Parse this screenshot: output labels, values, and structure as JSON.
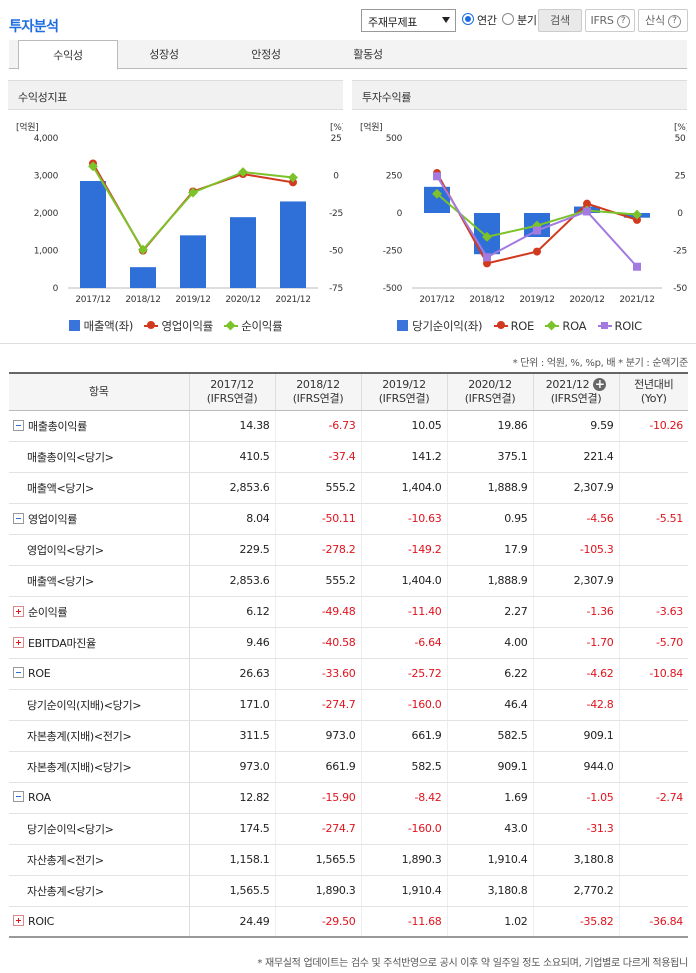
{
  "header": {
    "title": "투자분석",
    "report_select": "주재무제표",
    "period_annual": "연간",
    "period_quarter": "분기",
    "search_label": "검색",
    "ifrs_label": "IFRS",
    "formula_label": "산식",
    "help_glyph": "?"
  },
  "tabs": [
    {
      "label": "수익성",
      "active": true
    },
    {
      "label": "성장성",
      "active": false
    },
    {
      "label": "안정성",
      "active": false
    },
    {
      "label": "활동성",
      "active": false
    }
  ],
  "chart_data": [
    {
      "type": "bar",
      "title": "수익성지표",
      "left_unit": "[억원]",
      "right_unit": "[%]",
      "categories": [
        "2017/12",
        "2018/12",
        "2019/12",
        "2020/12",
        "2021/12"
      ],
      "left_ticks": [
        "4,000",
        "3,000",
        "2,000",
        "1,000",
        "0"
      ],
      "right_ticks": [
        "25",
        "0",
        "-25",
        "-50",
        "-75"
      ],
      "ylim_left": [
        0,
        4000
      ],
      "ylim_right": [
        -75,
        25
      ],
      "series": [
        {
          "name": "매출액(좌)",
          "kind": "bar",
          "axis": "left",
          "color": "#2f6fd8",
          "values": [
            2853.6,
            555.2,
            1404.0,
            1888.9,
            2307.9
          ]
        },
        {
          "name": "영업이익률",
          "kind": "line",
          "marker": "circle",
          "axis": "right",
          "color": "#d13a1e",
          "values": [
            8.04,
            -50.11,
            -10.63,
            0.95,
            -4.56
          ]
        },
        {
          "name": "순이익률",
          "kind": "line",
          "marker": "diamond",
          "axis": "right",
          "color": "#7cc22a",
          "values": [
            6.12,
            -49.48,
            -11.4,
            2.27,
            -1.36
          ]
        }
      ]
    },
    {
      "type": "bar",
      "title": "투자수익률",
      "left_unit": "[억원]",
      "right_unit": "[%]",
      "categories": [
        "2017/12",
        "2018/12",
        "2019/12",
        "2020/12",
        "2021/12"
      ],
      "left_ticks": [
        "500",
        "250",
        "0",
        "-250",
        "-500"
      ],
      "right_ticks": [
        "50",
        "25",
        "0",
        "-25",
        "-50"
      ],
      "ylim_left": [
        -500,
        500
      ],
      "ylim_right": [
        -50,
        50
      ],
      "series": [
        {
          "name": "당기순이익(좌)",
          "kind": "bar",
          "axis": "left",
          "color": "#2f6fd8",
          "values": [
            174.5,
            -274.7,
            -160.0,
            43.0,
            -31.3
          ]
        },
        {
          "name": "ROE",
          "kind": "line",
          "marker": "circle",
          "axis": "right",
          "color": "#d13a1e",
          "values": [
            26.63,
            -33.6,
            -25.72,
            6.22,
            -4.62
          ]
        },
        {
          "name": "ROA",
          "kind": "line",
          "marker": "diamond",
          "axis": "right",
          "color": "#7cc22a",
          "values": [
            12.82,
            -15.9,
            -8.42,
            1.69,
            -1.05
          ]
        },
        {
          "name": "ROIC",
          "kind": "line",
          "marker": "square",
          "axis": "right",
          "color": "#a37be0",
          "values": [
            24.49,
            -29.5,
            -11.68,
            1.02,
            -35.82
          ]
        }
      ]
    }
  ],
  "unit_note": "* 단위 : 억원, %, %p, 배   * 분기 : 순액기준",
  "table": {
    "header_item": "항목",
    "columns": [
      {
        "year": "2017/12",
        "basis": "(IFRS연결)"
      },
      {
        "year": "2018/12",
        "basis": "(IFRS연결)"
      },
      {
        "year": "2019/12",
        "basis": "(IFRS연결)"
      },
      {
        "year": "2020/12",
        "basis": "(IFRS연결)"
      },
      {
        "year": "2021/12",
        "basis": "(IFRS연결)",
        "plus": "+"
      }
    ],
    "yoy_header_1": "전년대비",
    "yoy_header_2": "(YoY)",
    "rows": [
      {
        "label": "매출총이익률",
        "toggle": "minus",
        "values": [
          "14.38",
          "-6.73",
          "10.05",
          "19.86",
          "9.59"
        ],
        "yoy": "-10.26"
      },
      {
        "label": "매출총이익<당기>",
        "sub": true,
        "values": [
          "410.5",
          "-37.4",
          "141.2",
          "375.1",
          "221.4"
        ],
        "yoy": ""
      },
      {
        "label": "매출액<당기>",
        "sub": true,
        "values": [
          "2,853.6",
          "555.2",
          "1,404.0",
          "1,888.9",
          "2,307.9"
        ],
        "yoy": ""
      },
      {
        "label": "영업이익률",
        "toggle": "minus",
        "values": [
          "8.04",
          "-50.11",
          "-10.63",
          "0.95",
          "-4.56"
        ],
        "yoy": "-5.51"
      },
      {
        "label": "영업이익<당기>",
        "sub": true,
        "values": [
          "229.5",
          "-278.2",
          "-149.2",
          "17.9",
          "-105.3"
        ],
        "yoy": ""
      },
      {
        "label": "매출액<당기>",
        "sub": true,
        "values": [
          "2,853.6",
          "555.2",
          "1,404.0",
          "1,888.9",
          "2,307.9"
        ],
        "yoy": ""
      },
      {
        "label": "순이익률",
        "toggle": "plus",
        "values": [
          "6.12",
          "-49.48",
          "-11.40",
          "2.27",
          "-1.36"
        ],
        "yoy": "-3.63"
      },
      {
        "label": "EBITDA마진율",
        "toggle": "plus",
        "values": [
          "9.46",
          "-40.58",
          "-6.64",
          "4.00",
          "-1.70"
        ],
        "yoy": "-5.70"
      },
      {
        "label": "ROE",
        "toggle": "minus",
        "values": [
          "26.63",
          "-33.60",
          "-25.72",
          "6.22",
          "-4.62"
        ],
        "yoy": "-10.84"
      },
      {
        "label": "당기순이익(지배)<당기>",
        "sub": true,
        "values": [
          "171.0",
          "-274.7",
          "-160.0",
          "46.4",
          "-42.8"
        ],
        "yoy": ""
      },
      {
        "label": "자본총계(지배)<전기>",
        "sub": true,
        "values": [
          "311.5",
          "973.0",
          "661.9",
          "582.5",
          "909.1"
        ],
        "yoy": ""
      },
      {
        "label": "자본총계(지배)<당기>",
        "sub": true,
        "values": [
          "973.0",
          "661.9",
          "582.5",
          "909.1",
          "944.0"
        ],
        "yoy": ""
      },
      {
        "label": "ROA",
        "toggle": "minus",
        "values": [
          "12.82",
          "-15.90",
          "-8.42",
          "1.69",
          "-1.05"
        ],
        "yoy": "-2.74"
      },
      {
        "label": "당기순이익<당기>",
        "sub": true,
        "values": [
          "174.5",
          "-274.7",
          "-160.0",
          "43.0",
          "-31.3"
        ],
        "yoy": ""
      },
      {
        "label": "자산총계<전기>",
        "sub": true,
        "values": [
          "1,158.1",
          "1,565.5",
          "1,890.3",
          "1,910.4",
          "3,180.8"
        ],
        "yoy": ""
      },
      {
        "label": "자산총계<당기>",
        "sub": true,
        "values": [
          "1,565.5",
          "1,890.3",
          "1,910.4",
          "3,180.8",
          "2,770.2"
        ],
        "yoy": ""
      },
      {
        "label": "ROIC",
        "toggle": "plus",
        "values": [
          "24.49",
          "-29.50",
          "-11.68",
          "1.02",
          "-35.82"
        ],
        "yoy": "-36.84"
      }
    ]
  },
  "footnote": "* 재무실적 업데이트는 검수 및 주석반영으로 공시 이후 약 일주일 정도 소요되며, 기업별로 다르게 적용됩니"
}
